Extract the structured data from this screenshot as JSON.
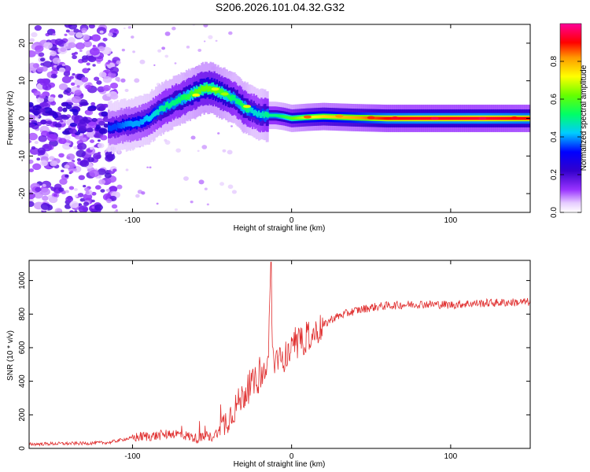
{
  "page": {
    "title": "S206.2026.101.04.32.G32"
  },
  "chart_data": [
    {
      "type": "heatmap",
      "title": "S206.2026.101.04.32.G32",
      "xlabel": "Height of straight line (km)",
      "ylabel": "Frequency (Hz)",
      "xlim": [
        -165,
        150
      ],
      "ylim": [
        -25,
        25
      ],
      "x_ticks": [
        -100,
        0,
        100
      ],
      "x_tick_labels": [
        "-100",
        "0",
        "100"
      ],
      "y_ticks": [
        -20,
        -10,
        0,
        10,
        20
      ],
      "y_tick_labels": [
        "-20",
        "-10",
        "0",
        "10",
        "20"
      ],
      "colorbar": {
        "label": "Normalized spectral amplitude",
        "range": [
          0,
          1
        ],
        "ticks": [
          0,
          0.2,
          0.4,
          0.6,
          0.8
        ],
        "tick_labels": [
          "0.0",
          "0.2",
          "0.4",
          "0.6",
          "0.8"
        ],
        "colors": [
          "#ffffff",
          "#e0c0ff",
          "#9933ff",
          "#3300cc",
          "#0000ff",
          "#00ccff",
          "#00ff66",
          "#66ff00",
          "#ffff00",
          "#ff9900",
          "#ff0000",
          "#ff0099"
        ]
      },
      "ridge": {
        "x": [
          -115,
          -110,
          -105,
          -100,
          -95,
          -90,
          -85,
          -80,
          -75,
          -70,
          -65,
          -60,
          -55,
          -50,
          -45,
          -40,
          -35,
          -30,
          -25,
          -20,
          -15,
          -10,
          -5,
          0,
          10,
          20,
          40,
          60,
          80,
          100,
          120,
          150
        ],
        "y": [
          -2.5,
          -2.2,
          -1.8,
          -1.5,
          -1,
          0,
          1.5,
          3,
          4,
          5,
          6,
          7,
          8,
          8,
          7,
          6,
          5,
          3,
          2,
          1,
          0.8,
          0.8,
          0.5,
          0,
          0.3,
          0.5,
          0.2,
          0,
          0,
          0,
          0,
          0
        ],
        "amplitude": [
          0.35,
          0.35,
          0.38,
          0.4,
          0.4,
          0.42,
          0.45,
          0.5,
          0.5,
          0.52,
          0.55,
          0.6,
          0.62,
          0.62,
          0.6,
          0.55,
          0.5,
          0.55,
          0.45,
          0.45,
          0.5,
          0.5,
          0.55,
          0.6,
          0.7,
          0.75,
          0.8,
          0.9,
          0.92,
          0.92,
          0.93,
          0.9
        ]
      }
    },
    {
      "type": "line",
      "xlabel": "Height of straight line (km)",
      "ylabel": "SNR (10 * v/v)",
      "xlim": [
        -165,
        150
      ],
      "ylim": [
        0,
        1120
      ],
      "x_ticks": [
        -100,
        0,
        100
      ],
      "x_tick_labels": [
        "-100",
        "0",
        "100"
      ],
      "y_ticks": [
        0,
        200,
        400,
        600,
        800,
        1000
      ],
      "y_tick_labels": [
        "0",
        "200",
        "400",
        "600",
        "800",
        "1000"
      ],
      "series": [
        {
          "name": "SNR",
          "color": "#e03030",
          "x": [
            -165,
            -150,
            -130,
            -115,
            -105,
            -95,
            -85,
            -75,
            -68,
            -60,
            -50,
            -45,
            -40,
            -35,
            -30,
            -25,
            -20,
            -15,
            -13,
            -12,
            -10,
            -5,
            0,
            5,
            10,
            15,
            20,
            25,
            30,
            40,
            50,
            60,
            70,
            80,
            90,
            100,
            110,
            120,
            130,
            140,
            150
          ],
          "values": [
            25,
            28,
            30,
            35,
            55,
            70,
            75,
            90,
            80,
            60,
            70,
            110,
            180,
            250,
            320,
            380,
            420,
            470,
            1110,
            560,
            500,
            540,
            580,
            620,
            660,
            690,
            730,
            770,
            790,
            820,
            840,
            850,
            855,
            860,
            858,
            855,
            862,
            865,
            868,
            870,
            872
          ]
        }
      ]
    }
  ]
}
